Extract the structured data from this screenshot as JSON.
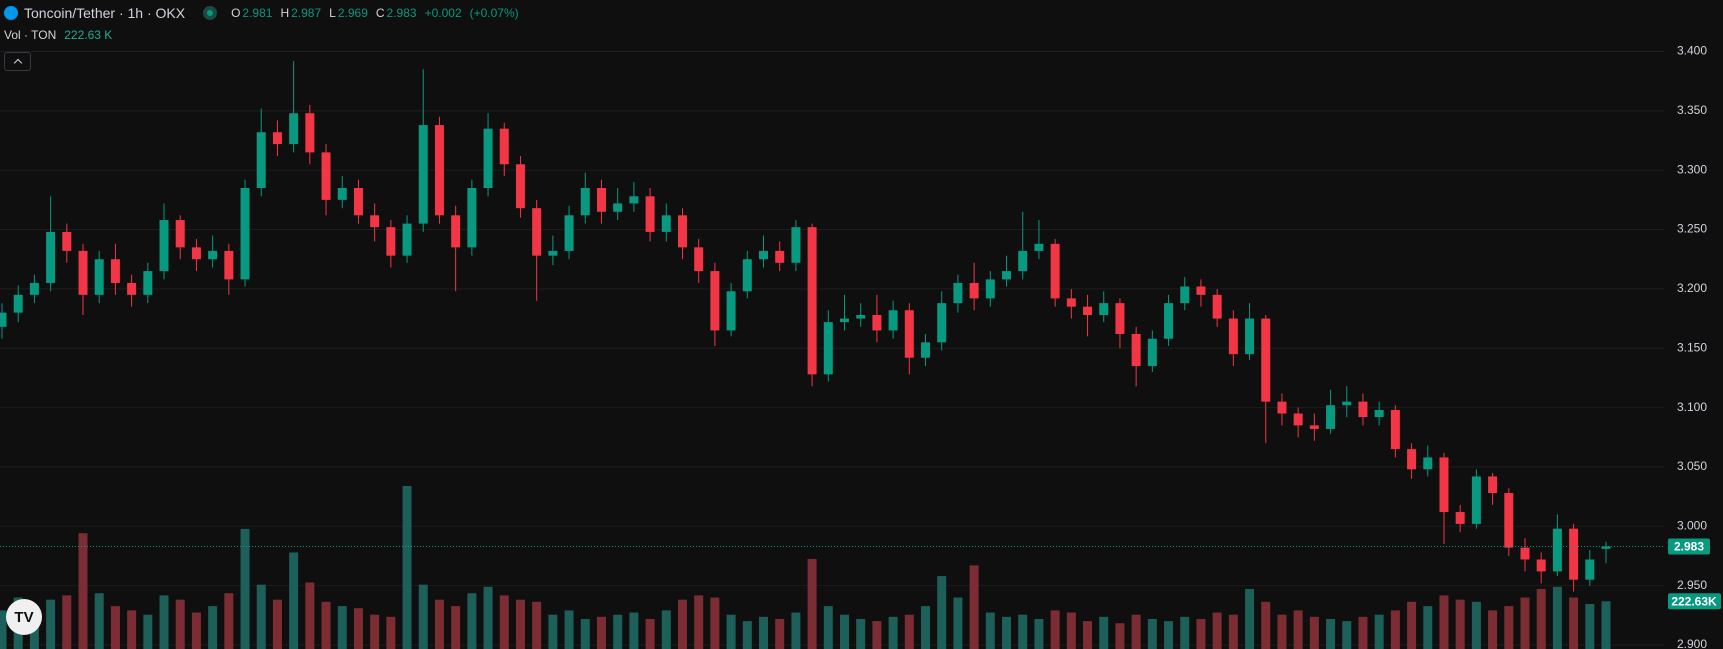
{
  "header": {
    "symbol": "Toncoin/Tether · 1h · OKX",
    "ohlc_labels": [
      "O",
      "H",
      "L",
      "C"
    ],
    "change": "+0.002",
    "change_pct": "(+0.07%)",
    "volume_title": "Vol · TON",
    "volume_text": "222.63 K"
  },
  "chart_data": {
    "type": "candlestick",
    "open": [
      3.168,
      3.18,
      3.195,
      3.205,
      3.248,
      3.232,
      3.195,
      3.225,
      3.205,
      3.195,
      3.215,
      3.258,
      3.235,
      3.225,
      3.232,
      3.208,
      3.285,
      3.332,
      3.322,
      3.348,
      3.315,
      3.275,
      3.285,
      3.262,
      3.252,
      3.228,
      3.255,
      3.338,
      3.262,
      3.235,
      3.285,
      3.335,
      3.305,
      3.268,
      3.228,
      3.232,
      3.262,
      3.285,
      3.265,
      3.272,
      3.278,
      3.248,
      3.262,
      3.235,
      3.215,
      3.165,
      3.198,
      3.225,
      3.232,
      3.222,
      3.252,
      3.128,
      3.172,
      3.175,
      3.178,
      3.165,
      3.182,
      3.142,
      3.155,
      3.188,
      3.205,
      3.192,
      3.208,
      3.215,
      3.232,
      3.238,
      3.192,
      3.185,
      3.178,
      3.188,
      3.162,
      3.135,
      3.158,
      3.188,
      3.202,
      3.195,
      3.175,
      3.145,
      3.175,
      3.105,
      3.095,
      3.085,
      3.082,
      3.102,
      3.105,
      3.092,
      3.098,
      3.065,
      3.048,
      3.058,
      3.012,
      3.002,
      3.042,
      3.028,
      2.982,
      2.972,
      2.962,
      2.998,
      2.955,
      2.981
    ],
    "high": [
      3.188,
      3.203,
      3.212,
      3.278,
      3.255,
      3.238,
      3.232,
      3.238,
      3.212,
      3.222,
      3.272,
      3.262,
      3.242,
      3.245,
      3.238,
      3.292,
      3.352,
      3.342,
      3.392,
      3.355,
      3.322,
      3.295,
      3.292,
      3.272,
      3.258,
      3.262,
      3.385,
      3.345,
      3.27,
      3.292,
      3.348,
      3.34,
      3.312,
      3.275,
      3.245,
      3.27,
      3.298,
      3.292,
      3.285,
      3.29,
      3.285,
      3.272,
      3.268,
      3.242,
      3.222,
      3.205,
      3.232,
      3.245,
      3.24,
      3.258,
      3.255,
      3.182,
      3.195,
      3.188,
      3.195,
      3.19,
      3.188,
      3.162,
      3.198,
      3.212,
      3.222,
      3.215,
      3.228,
      3.265,
      3.258,
      3.242,
      3.2,
      3.195,
      3.198,
      3.192,
      3.168,
      3.165,
      3.195,
      3.21,
      3.208,
      3.2,
      3.182,
      3.188,
      3.178,
      3.112,
      3.1,
      3.095,
      3.115,
      3.118,
      3.112,
      3.105,
      3.102,
      3.07,
      3.068,
      3.062,
      3.018,
      3.048,
      3.045,
      3.032,
      2.99,
      2.978,
      3.01,
      3.002,
      2.98,
      2.987
    ],
    "low": [
      3.158,
      3.172,
      3.188,
      3.198,
      3.222,
      3.178,
      3.188,
      3.195,
      3.185,
      3.188,
      3.208,
      3.225,
      3.215,
      3.218,
      3.195,
      3.202,
      3.278,
      3.312,
      3.315,
      3.305,
      3.262,
      3.268,
      3.255,
      3.24,
      3.218,
      3.222,
      3.248,
      3.255,
      3.198,
      3.228,
      3.278,
      3.295,
      3.26,
      3.19,
      3.22,
      3.225,
      3.255,
      3.255,
      3.258,
      3.265,
      3.24,
      3.24,
      3.225,
      3.205,
      3.152,
      3.16,
      3.192,
      3.218,
      3.215,
      3.215,
      3.118,
      3.122,
      3.165,
      3.168,
      3.155,
      3.158,
      3.128,
      3.135,
      3.148,
      3.18,
      3.182,
      3.185,
      3.202,
      3.208,
      3.225,
      3.185,
      3.175,
      3.16,
      3.172,
      3.15,
      3.118,
      3.13,
      3.152,
      3.182,
      3.185,
      3.168,
      3.135,
      3.14,
      3.07,
      3.085,
      3.075,
      3.072,
      3.078,
      3.092,
      3.085,
      3.085,
      3.058,
      3.04,
      3.042,
      2.985,
      2.995,
      2.998,
      3.018,
      2.975,
      2.962,
      2.952,
      2.958,
      2.945,
      2.95,
      2.969
    ],
    "close": [
      3.18,
      3.195,
      3.205,
      3.248,
      3.232,
      3.195,
      3.225,
      3.205,
      3.195,
      3.215,
      3.258,
      3.235,
      3.225,
      3.232,
      3.208,
      3.285,
      3.332,
      3.322,
      3.348,
      3.315,
      3.275,
      3.285,
      3.262,
      3.252,
      3.228,
      3.255,
      3.338,
      3.262,
      3.235,
      3.285,
      3.335,
      3.305,
      3.268,
      3.228,
      3.232,
      3.262,
      3.285,
      3.265,
      3.272,
      3.278,
      3.248,
      3.262,
      3.235,
      3.215,
      3.165,
      3.198,
      3.225,
      3.232,
      3.222,
      3.252,
      3.128,
      3.172,
      3.175,
      3.178,
      3.165,
      3.182,
      3.142,
      3.155,
      3.188,
      3.205,
      3.192,
      3.208,
      3.215,
      3.232,
      3.238,
      3.192,
      3.185,
      3.178,
      3.188,
      3.162,
      3.135,
      3.158,
      3.188,
      3.202,
      3.195,
      3.175,
      3.145,
      3.175,
      3.105,
      3.095,
      3.085,
      3.082,
      3.102,
      3.105,
      3.092,
      3.098,
      3.065,
      3.048,
      3.058,
      3.012,
      3.002,
      3.042,
      3.028,
      2.982,
      2.972,
      2.962,
      2.998,
      2.955,
      2.972,
      2.983
    ],
    "volume": [
      180000,
      240000,
      200000,
      230000,
      250000,
      540000,
      260000,
      200000,
      180000,
      160000,
      250000,
      230000,
      170000,
      200000,
      260000,
      560000,
      300000,
      230000,
      450000,
      310000,
      220000,
      200000,
      190000,
      160000,
      150000,
      760000,
      300000,
      230000,
      200000,
      260000,
      290000,
      250000,
      230000,
      220000,
      160000,
      180000,
      140000,
      150000,
      160000,
      170000,
      140000,
      180000,
      230000,
      250000,
      240000,
      160000,
      130000,
      150000,
      140000,
      170000,
      420000,
      200000,
      160000,
      140000,
      130000,
      150000,
      160000,
      200000,
      340000,
      240000,
      390000,
      170000,
      150000,
      160000,
      140000,
      180000,
      170000,
      130000,
      150000,
      120000,
      160000,
      140000,
      130000,
      150000,
      140000,
      170000,
      160000,
      280000,
      220000,
      160000,
      180000,
      150000,
      140000,
      130000,
      150000,
      160000,
      180000,
      220000,
      200000,
      250000,
      230000,
      220000,
      180000,
      200000,
      240000,
      280000,
      290000,
      240000,
      210000,
      222630
    ],
    "volume_axis_label": "222.63K",
    "ylim": [
      2.8966,
      3.4434
    ],
    "yticks": [
      {
        "value": 2.9,
        "label": "2.900"
      },
      {
        "value": 2.95,
        "label": "2.950"
      },
      {
        "value": 3.0,
        "label": "3.000"
      },
      {
        "value": 3.05,
        "label": "3.050"
      },
      {
        "value": 3.1,
        "label": "3.100"
      },
      {
        "value": 3.15,
        "label": "3.150"
      },
      {
        "value": 3.2,
        "label": "3.200"
      },
      {
        "value": 3.25,
        "label": "3.250"
      },
      {
        "value": 3.3,
        "label": "3.300"
      },
      {
        "value": 3.35,
        "label": "3.350"
      },
      {
        "value": 3.4,
        "label": "3.400"
      }
    ],
    "grid": true,
    "up_color": "#089981",
    "down_color": "#f23645",
    "volume_up_color": "#1d5f59",
    "volume_down_color": "#7c2d33",
    "grid_color": "#1d1d1d"
  }
}
